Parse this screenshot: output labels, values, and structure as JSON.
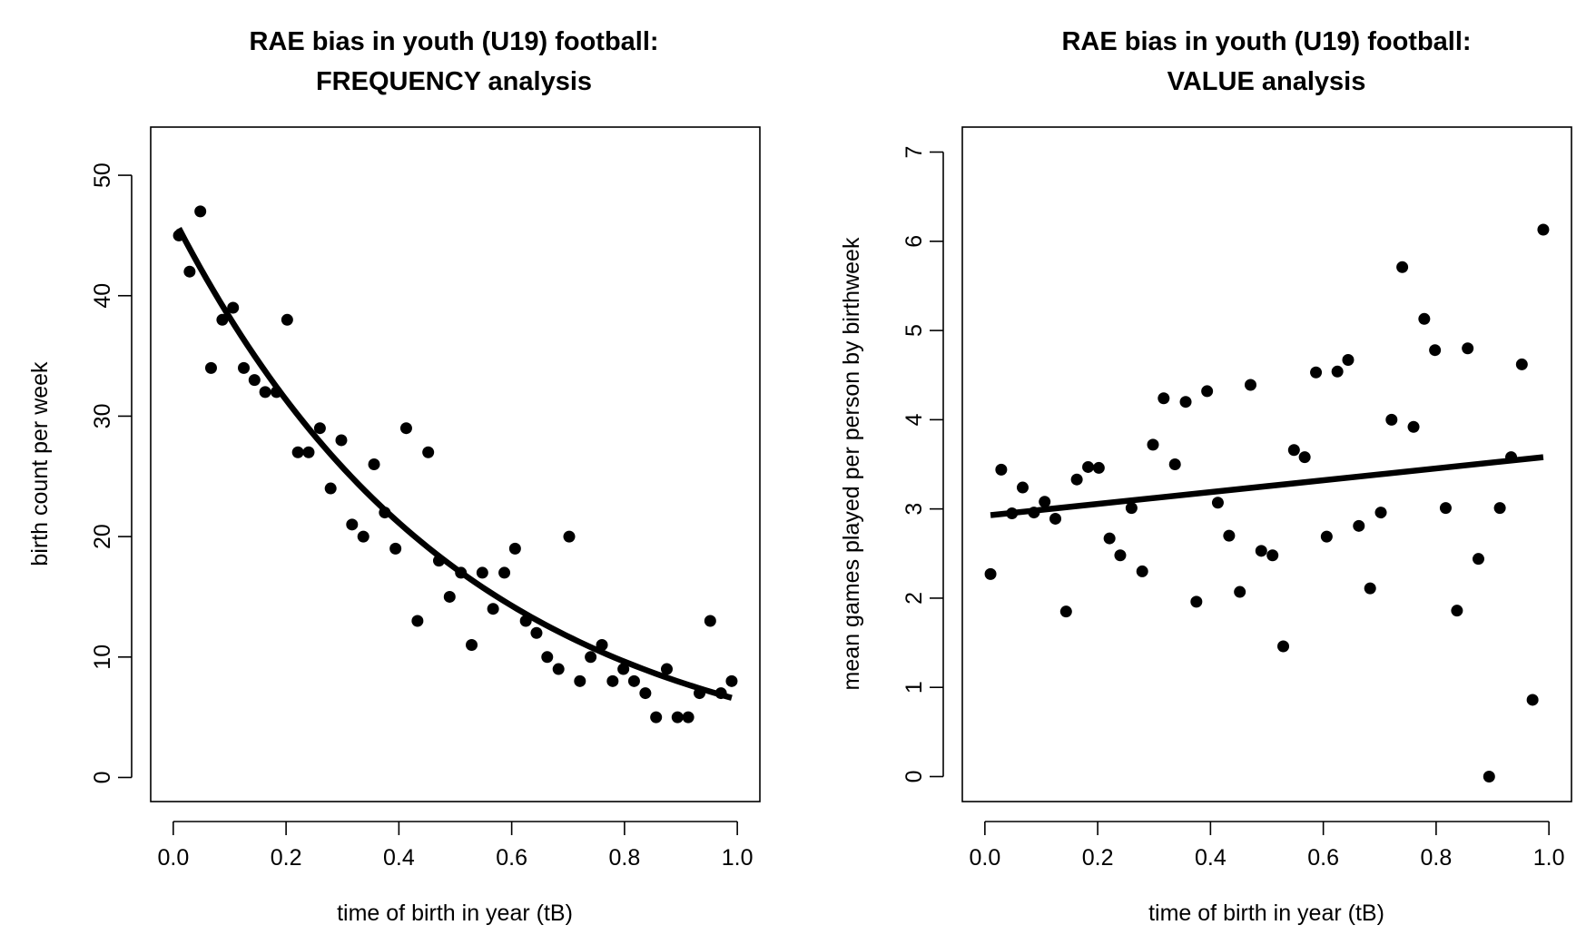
{
  "chart_data": [
    {
      "type": "scatter",
      "title": [
        "RAE bias in youth (U19) football:",
        "FREQUENCY analysis"
      ],
      "xlabel": "time of birth in year (tB)",
      "ylabel": "birth count per week",
      "xlim": [
        -0.04,
        1.04
      ],
      "ylim": [
        -2,
        54
      ],
      "xticks": [
        "0.0",
        "0.2",
        "0.4",
        "0.6",
        "0.8",
        "1.0"
      ],
      "xtick_values": [
        0,
        0.2,
        0.4,
        0.6,
        0.8,
        1.0
      ],
      "yticks": [
        "0",
        "10",
        "20",
        "30",
        "40",
        "50"
      ],
      "ytick_values": [
        0,
        10,
        20,
        30,
        40,
        50
      ],
      "grid": false,
      "legend": "none",
      "series": [
        {
          "kind": "points",
          "x": [
            0.01,
            0.029,
            0.048,
            0.067,
            0.087,
            0.106,
            0.125,
            0.144,
            0.163,
            0.183,
            0.202,
            0.221,
            0.24,
            0.26,
            0.279,
            0.298,
            0.317,
            0.337,
            0.356,
            0.375,
            0.394,
            0.413,
            0.433,
            0.452,
            0.471,
            0.49,
            0.51,
            0.529,
            0.548,
            0.567,
            0.587,
            0.606,
            0.625,
            0.644,
            0.663,
            0.683,
            0.702,
            0.721,
            0.74,
            0.76,
            0.779,
            0.798,
            0.817,
            0.837,
            0.856,
            0.875,
            0.894,
            0.913,
            0.933,
            0.952,
            0.971,
            0.99
          ],
          "y": [
            45,
            42,
            47,
            34,
            38,
            39,
            34,
            33,
            32,
            32,
            38,
            27,
            27,
            29,
            24,
            28,
            21,
            20,
            26,
            22,
            19,
            29,
            13,
            27,
            18,
            15,
            17,
            11,
            17,
            14,
            17,
            19,
            13,
            12,
            10,
            9,
            20,
            8,
            10,
            11,
            8,
            9,
            8,
            7,
            5,
            9,
            5,
            5,
            7,
            13,
            7,
            8
          ]
        },
        {
          "kind": "curve",
          "model": "exponential",
          "a": 46.5,
          "b": -1.97,
          "x_range": [
            0.01,
            0.99
          ]
        }
      ]
    },
    {
      "type": "scatter",
      "title": [
        "RAE bias in youth (U19) football:",
        "VALUE analysis"
      ],
      "xlabel": "time of birth in year (tB)",
      "ylabel": "mean games played per person by birthweek",
      "xlim": [
        -0.04,
        1.04
      ],
      "ylim": [
        -0.28,
        7.28
      ],
      "xticks": [
        "0.0",
        "0.2",
        "0.4",
        "0.6",
        "0.8",
        "1.0"
      ],
      "xtick_values": [
        0,
        0.2,
        0.4,
        0.6,
        0.8,
        1.0
      ],
      "yticks": [
        "0",
        "1",
        "2",
        "3",
        "4",
        "5",
        "6",
        "7"
      ],
      "ytick_values": [
        0,
        1,
        2,
        3,
        4,
        5,
        6,
        7
      ],
      "grid": false,
      "legend": "none",
      "series": [
        {
          "kind": "points",
          "x": [
            0.01,
            0.029,
            0.048,
            0.067,
            0.087,
            0.106,
            0.125,
            0.144,
            0.163,
            0.183,
            0.202,
            0.221,
            0.24,
            0.26,
            0.279,
            0.298,
            0.317,
            0.337,
            0.356,
            0.375,
            0.394,
            0.413,
            0.433,
            0.452,
            0.471,
            0.49,
            0.51,
            0.529,
            0.548,
            0.567,
            0.587,
            0.606,
            0.625,
            0.644,
            0.663,
            0.683,
            0.702,
            0.721,
            0.74,
            0.76,
            0.779,
            0.798,
            0.817,
            0.837,
            0.856,
            0.875,
            0.894,
            0.913,
            0.933,
            0.952,
            0.971,
            0.99
          ],
          "y": [
            2.27,
            3.44,
            2.95,
            3.24,
            2.96,
            3.08,
            2.89,
            1.85,
            3.33,
            3.47,
            3.46,
            2.67,
            2.48,
            3.01,
            2.3,
            3.72,
            4.24,
            3.5,
            4.2,
            1.96,
            4.32,
            3.07,
            2.7,
            2.07,
            4.39,
            2.53,
            2.48,
            1.46,
            3.66,
            3.58,
            4.53,
            2.69,
            4.54,
            4.67,
            2.81,
            2.11,
            2.96,
            4.0,
            5.71,
            3.92,
            5.13,
            4.78,
            3.01,
            1.86,
            4.8,
            2.44,
            0.0,
            3.01,
            3.58,
            4.62,
            0.86,
            6.13
          ]
        },
        {
          "kind": "line",
          "x": [
            0.01,
            0.99
          ],
          "y": [
            2.93,
            3.58
          ]
        }
      ]
    }
  ]
}
